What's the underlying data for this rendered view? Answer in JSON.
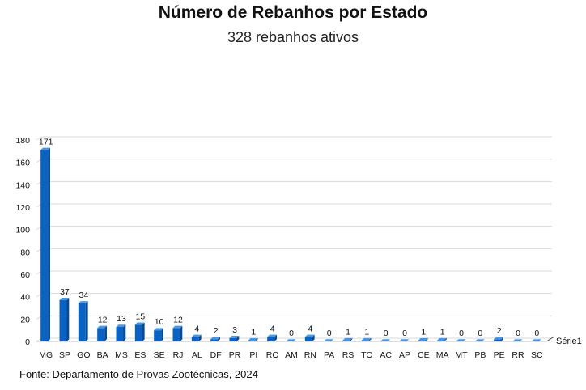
{
  "title": "Número de Rebanhos por Estado",
  "subtitle": "328 rebanhos ativos",
  "source": "Fonte: Departamento de Provas Zootécnicas, 2024",
  "colors": {
    "bar_front": "#0a63c2",
    "bar_side": "#064a94",
    "bar_top": "#4f95dc",
    "grid": "#d9d9d9"
  },
  "chart_data": {
    "type": "bar",
    "categories": [
      "MG",
      "SP",
      "GO",
      "BA",
      "MS",
      "ES",
      "SE",
      "RJ",
      "AL",
      "DF",
      "PR",
      "PI",
      "RO",
      "AM",
      "RN",
      "PA",
      "RS",
      "TO",
      "AC",
      "AP",
      "CE",
      "MA",
      "MT",
      "PB",
      "PE",
      "RR",
      "SC"
    ],
    "series": [
      {
        "name": "Série1",
        "values": [
          171,
          37,
          34,
          12,
          13,
          15,
          10,
          12,
          4,
          2,
          3,
          1,
          4,
          0,
          4,
          0,
          1,
          1,
          0,
          0,
          1,
          1,
          0,
          0,
          2,
          0,
          0
        ]
      }
    ],
    "ylim": [
      0,
      180
    ],
    "yticks": [
      0,
      20,
      40,
      60,
      80,
      100,
      120,
      140,
      160,
      180
    ],
    "grid": true,
    "data_labels": true,
    "legend_position": "right"
  }
}
